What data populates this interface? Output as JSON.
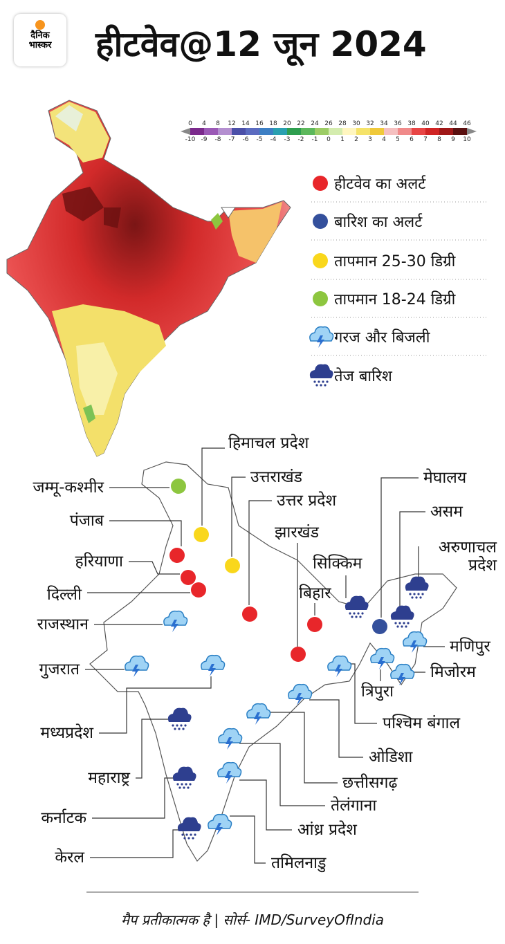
{
  "header": {
    "logo_top": "दैनिक",
    "logo_bottom": "भास्कर",
    "title": "हीटवेव@12 जून 2024"
  },
  "scale": {
    "top_labels": [
      0,
      4,
      8,
      12,
      14,
      16,
      18,
      20,
      22,
      24,
      26,
      28,
      30,
      32,
      34,
      36,
      38,
      40,
      42,
      44,
      46
    ],
    "bottom_labels": [
      -10,
      -9,
      -8,
      -7,
      -6,
      -5,
      -4,
      -3,
      -2,
      -1,
      0,
      1,
      2,
      3,
      4,
      5,
      6,
      7,
      8,
      9,
      10
    ],
    "colors": [
      "#7b2a8c",
      "#9b59b6",
      "#b48fd0",
      "#4b4fa8",
      "#5b6bc0",
      "#3d7fc4",
      "#2aa0b0",
      "#2e9e4f",
      "#5cb85c",
      "#9ccc65",
      "#d4ecae",
      "#fff6c0",
      "#f5e36a",
      "#f0c93a",
      "#f5c0c0",
      "#f08a8a",
      "#e84545",
      "#d02424",
      "#a01818",
      "#5a1010"
    ]
  },
  "legend": [
    "हीटवेव का अलर्ट",
    "बारिश का अलर्ट",
    "तापमान 25-30 डिग्री",
    "तापमान 18-24 डिग्री",
    "गरज और बिजली",
    "तेज बारिश"
  ],
  "states": [
    "हिमाचल प्रदेश",
    "जम्मू-कश्मीर",
    "उत्तराखंड",
    "उत्तर प्रदेश",
    "पंजाब",
    "झारखंड",
    "सिक्किम",
    "हरियाणा",
    "दिल्ली",
    "बिहार",
    "मेघालय",
    "असम",
    "अरुणाचल प्रदेश",
    "राजस्थान",
    "गुजरात",
    "मणिपुर",
    "मिजोरम",
    "त्रिपुरा",
    "पश्चिम बंगाल",
    "मध्यप्रदेश",
    "ओडिशा",
    "महाराष्ट्र",
    "छत्तीसगढ़",
    "तेलंगाना",
    "कर्नाटक",
    "आंध्र प्रदेश",
    "केरल",
    "तमिलनाडु"
  ],
  "footer": {
    "note": "मैप प्रतीकात्मक है | सोर्स- IMD/SurveyOfIndia"
  }
}
